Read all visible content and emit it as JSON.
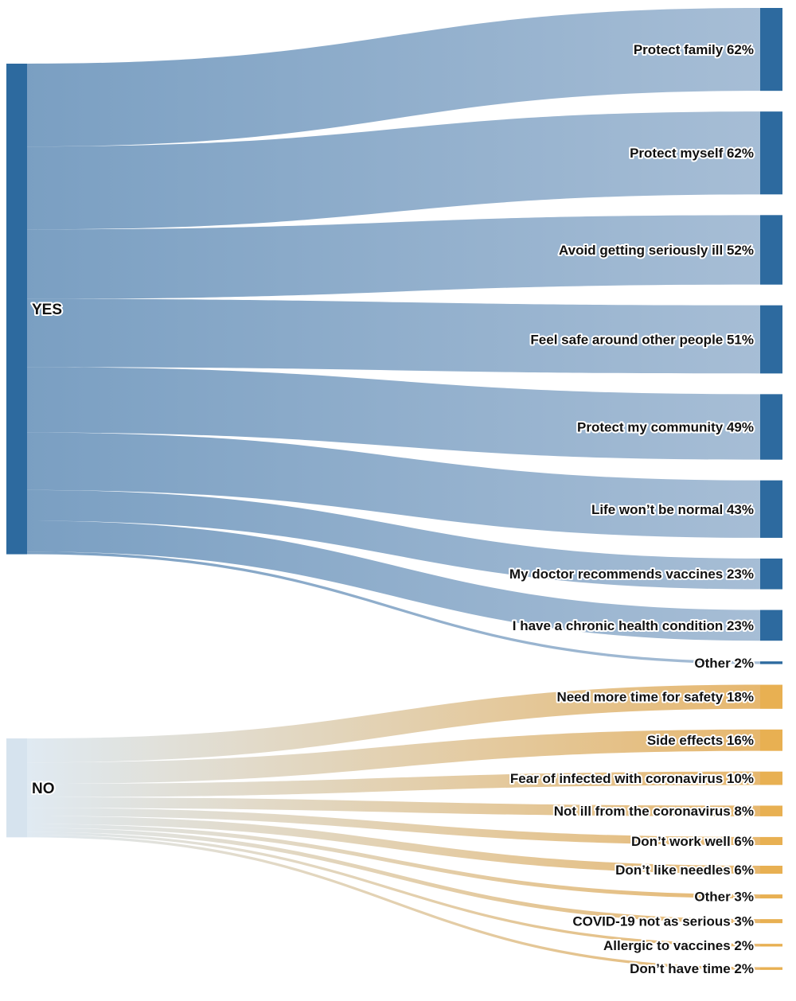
{
  "chart_data": {
    "type": "sankey",
    "title": "",
    "orientation": "left-to-right",
    "groups": [
      {
        "id": "yes",
        "label": "YES",
        "node_color": "#2d6a9f",
        "flow_gradient": [
          "#6f97bd",
          "#9fb8d2"
        ],
        "target_node_color": "#2d6a9f",
        "targets": [
          {
            "label": "Protect family",
            "value": 62,
            "display": "Protect family 62%"
          },
          {
            "label": "Protect myself",
            "value": 62,
            "display": "Protect myself 62%"
          },
          {
            "label": "Avoid getting seriously ill",
            "value": 52,
            "display": "Avoid getting seriously ill 52%"
          },
          {
            "label": "Feel safe around other people",
            "value": 51,
            "display": "Feel safe around other people 51%"
          },
          {
            "label": "Protect my community",
            "value": 49,
            "display": "Protect my community 49%"
          },
          {
            "label": "Life won’t be normal",
            "value": 43,
            "display": "Life won’t be normal 43%"
          },
          {
            "label": "My doctor recommends vaccines",
            "value": 23,
            "display": "My doctor recommends vaccines 23%"
          },
          {
            "label": "I have a chronic health condition",
            "value": 23,
            "display": "I have a chronic health condition 23%"
          },
          {
            "label": "Other",
            "value": 2,
            "display": "Other 2%"
          }
        ]
      },
      {
        "id": "no",
        "label": "NO",
        "node_color": "#d6e3ee",
        "flow_gradient": [
          "#dde8f1",
          "#e4b162"
        ],
        "target_node_color": "#e8b052",
        "targets": [
          {
            "label": "Need more time for safety",
            "value": 18,
            "display": "Need more time for safety 18%"
          },
          {
            "label": "Side effects",
            "value": 16,
            "display": "Side effects 16%"
          },
          {
            "label": "Fear of infected with coronavirus",
            "value": 10,
            "display": "Fear of infected with coronavirus 10%"
          },
          {
            "label": "Not ill from the coronavirus",
            "value": 8,
            "display": "Not ill from the coronavirus 8%"
          },
          {
            "label": "Don’t work well",
            "value": 6,
            "display": "Don’t work well 6%"
          },
          {
            "label": "Don’t like needles",
            "value": 6,
            "display": "Don’t like needles 6%"
          },
          {
            "label": "Other",
            "value": 3,
            "display": "Other 3%"
          },
          {
            "label": "COVID-19 not as serious",
            "value": 3,
            "display": "COVID-19 not as serious 3%"
          },
          {
            "label": "Allergic to vaccines",
            "value": 2,
            "display": "Allergic to vaccines 2%"
          },
          {
            "label": "Don’t have time",
            "value": 2,
            "display": "Don’t have time 2%"
          }
        ]
      }
    ]
  }
}
